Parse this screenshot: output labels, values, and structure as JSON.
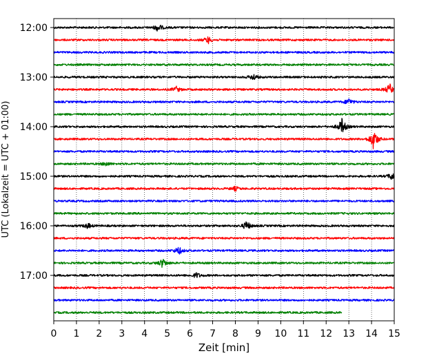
{
  "chart_data": {
    "type": "line",
    "xlabel": "Zeit  [min]",
    "ylabel": "UTC (Lokalzeit = UTC + 01:00)",
    "x_ticks": [
      0,
      1,
      2,
      3,
      4,
      5,
      6,
      7,
      8,
      9,
      10,
      11,
      12,
      13,
      14,
      15
    ],
    "xlim": [
      0,
      15
    ],
    "y_tick_labels": [
      "12:00",
      "13:00",
      "14:00",
      "15:00",
      "16:00",
      "17:00"
    ],
    "grid": "vertical dotted lines at each minute",
    "trace_interval_minutes": 15,
    "trace_colors": [
      "#000000",
      "#ff0000",
      "#0000ff",
      "#008000"
    ],
    "traces": [
      {
        "start": "12:00",
        "color": "#000000",
        "end_min": 15,
        "events": [
          {
            "t": 4.6,
            "amp": 6
          }
        ]
      },
      {
        "start": "12:15",
        "color": "#ff0000",
        "end_min": 15,
        "events": [
          {
            "t": 6.8,
            "amp": 5
          }
        ]
      },
      {
        "start": "12:30",
        "color": "#0000ff",
        "end_min": 15,
        "events": []
      },
      {
        "start": "12:45",
        "color": "#008000",
        "end_min": 15,
        "events": []
      },
      {
        "start": "13:00",
        "color": "#000000",
        "end_min": 15,
        "events": [
          {
            "t": 8.8,
            "amp": 5
          }
        ]
      },
      {
        "start": "13:15",
        "color": "#ff0000",
        "end_min": 15,
        "events": [
          {
            "t": 5.4,
            "amp": 4
          },
          {
            "t": 14.8,
            "amp": 8
          }
        ]
      },
      {
        "start": "13:30",
        "color": "#0000ff",
        "end_min": 15,
        "events": [
          {
            "t": 13.0,
            "amp": 5
          }
        ]
      },
      {
        "start": "13:45",
        "color": "#008000",
        "end_min": 15,
        "events": []
      },
      {
        "start": "14:00",
        "color": "#000000",
        "end_min": 15,
        "events": [
          {
            "t": 12.7,
            "amp": 12
          }
        ]
      },
      {
        "start": "14:15",
        "color": "#ff0000",
        "end_min": 15,
        "events": [
          {
            "t": 14.1,
            "amp": 16
          }
        ]
      },
      {
        "start": "14:30",
        "color": "#0000ff",
        "end_min": 15,
        "events": []
      },
      {
        "start": "14:45",
        "color": "#008000",
        "end_min": 15,
        "events": [
          {
            "t": 2.3,
            "amp": 3
          }
        ]
      },
      {
        "start": "15:00",
        "color": "#000000",
        "end_min": 15,
        "events": [
          {
            "t": 14.9,
            "amp": 6
          }
        ]
      },
      {
        "start": "15:15",
        "color": "#ff0000",
        "end_min": 15,
        "events": [
          {
            "t": 8.0,
            "amp": 3
          }
        ]
      },
      {
        "start": "15:30",
        "color": "#0000ff",
        "end_min": 15,
        "events": []
      },
      {
        "start": "15:45",
        "color": "#008000",
        "end_min": 15,
        "events": []
      },
      {
        "start": "16:00",
        "color": "#000000",
        "end_min": 15,
        "events": [
          {
            "t": 1.5,
            "amp": 4
          },
          {
            "t": 8.5,
            "amp": 7
          }
        ]
      },
      {
        "start": "16:15",
        "color": "#ff0000",
        "end_min": 15,
        "events": []
      },
      {
        "start": "16:30",
        "color": "#0000ff",
        "end_min": 15,
        "events": [
          {
            "t": 5.5,
            "amp": 6
          }
        ]
      },
      {
        "start": "16:45",
        "color": "#008000",
        "end_min": 15,
        "events": [
          {
            "t": 4.8,
            "amp": 7
          }
        ]
      },
      {
        "start": "17:00",
        "color": "#000000",
        "end_min": 15,
        "events": [
          {
            "t": 6.3,
            "amp": 4
          }
        ]
      },
      {
        "start": "17:15",
        "color": "#ff0000",
        "end_min": 15,
        "events": []
      },
      {
        "start": "17:30",
        "color": "#0000ff",
        "end_min": 15,
        "events": []
      },
      {
        "start": "17:45",
        "color": "#008000",
        "end_min": 12.7,
        "events": []
      }
    ]
  }
}
